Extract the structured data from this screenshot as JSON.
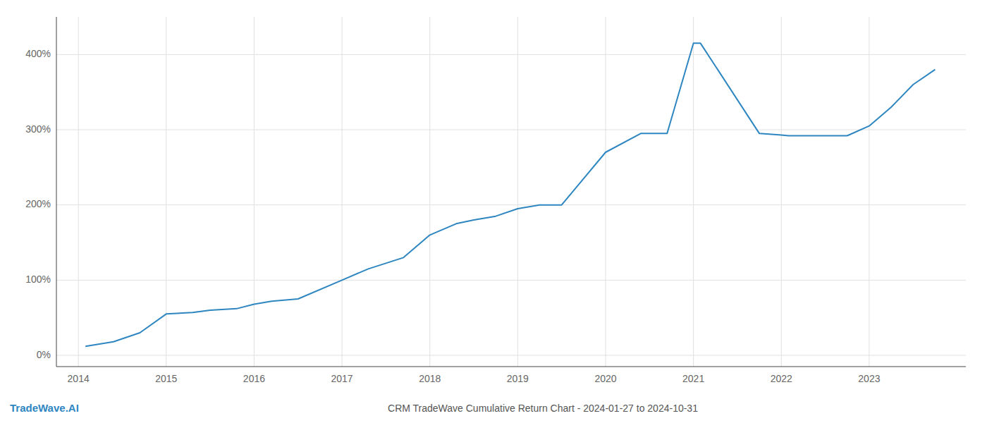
{
  "chart_data": {
    "type": "line",
    "title": "CRM TradeWave Cumulative Return Chart - 2024-01-27 to 2024-10-31",
    "annotations": [
      {
        "text": "TradeWave.AI",
        "color": "#2e86c1"
      }
    ],
    "x": [
      2014.08,
      2014.4,
      2014.7,
      2015.0,
      2015.3,
      2015.5,
      2015.8,
      2016.0,
      2016.2,
      2016.5,
      2017.0,
      2017.3,
      2017.7,
      2018.0,
      2018.3,
      2018.5,
      2018.75,
      2019.0,
      2019.25,
      2019.5,
      2020.0,
      2020.4,
      2020.7,
      2021.0,
      2021.08,
      2021.75,
      2022.0,
      2022.08,
      2022.5,
      2022.75,
      2023.0,
      2023.25,
      2023.5,
      2023.75
    ],
    "values": [
      12,
      18,
      30,
      55,
      57,
      60,
      62,
      68,
      72,
      75,
      100,
      115,
      130,
      160,
      175,
      180,
      185,
      195,
      200,
      200,
      270,
      295,
      295,
      415,
      415,
      295,
      293,
      292,
      292,
      292,
      305,
      330,
      360,
      380
    ],
    "color": "#2e86c1",
    "xlim": [
      2013.75,
      2024.1
    ],
    "ylim": [
      -15,
      450
    ],
    "xticks": [
      2014,
      2015,
      2016,
      2017,
      2018,
      2019,
      2020,
      2021,
      2022,
      2023
    ],
    "yticks": [
      {
        "value": 0,
        "label": "0%"
      },
      {
        "value": 100,
        "label": "100%"
      },
      {
        "value": 200,
        "label": "200%"
      },
      {
        "value": 300,
        "label": "300%"
      },
      {
        "value": 400,
        "label": "400%"
      }
    ],
    "grid": true
  }
}
